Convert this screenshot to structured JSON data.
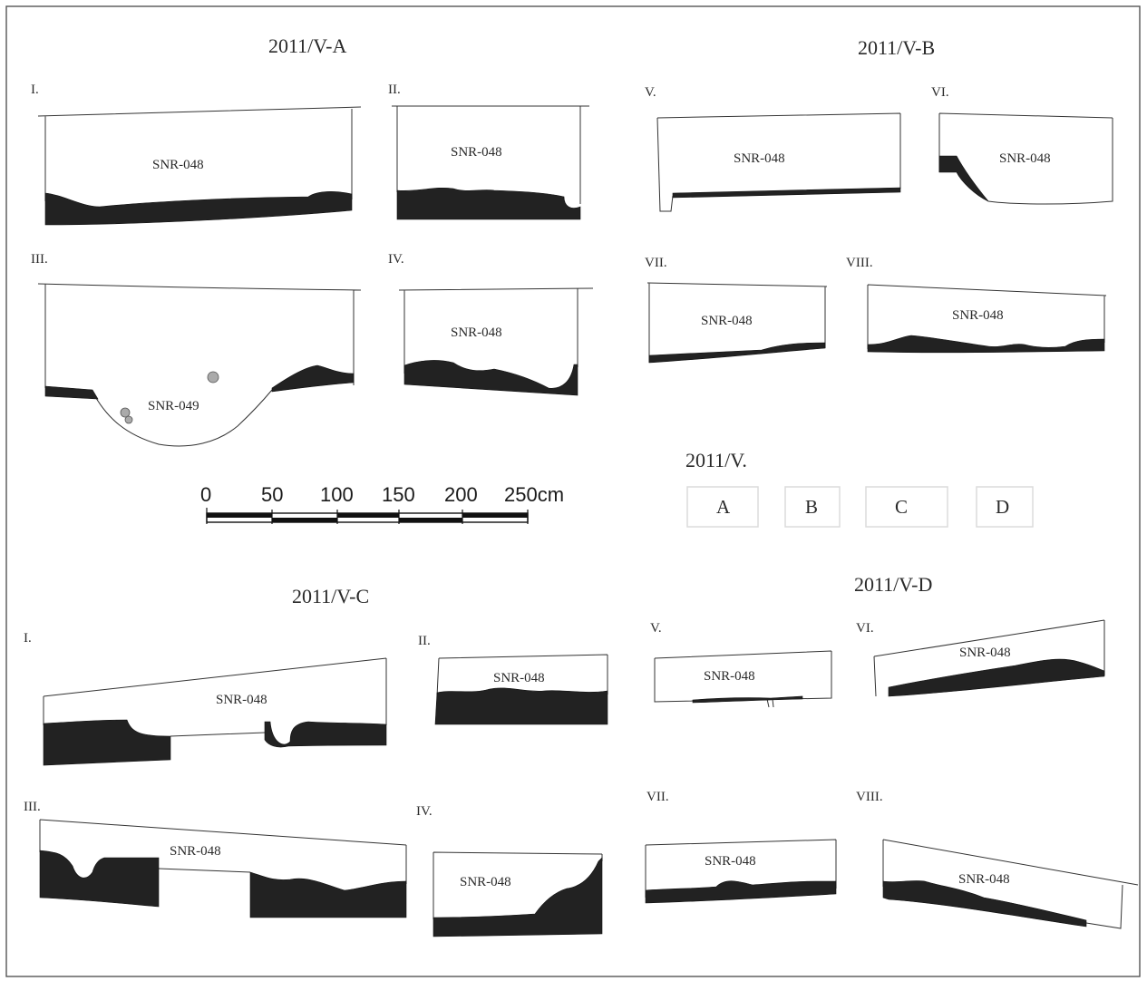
{
  "sections": [
    {
      "title": "2011/V-A",
      "profiles": [
        {
          "label": "I.",
          "unit": "SNR-048"
        },
        {
          "label": "II.",
          "unit": "SNR-048"
        },
        {
          "label": "III.",
          "unit": "SNR-049"
        },
        {
          "label": "IV.",
          "unit": "SNR-048"
        }
      ]
    },
    {
      "title": "2011/V-B",
      "profiles": [
        {
          "label": "V.",
          "unit": "SNR-048"
        },
        {
          "label": "VI.",
          "unit": "SNR-048"
        },
        {
          "label": "VII.",
          "unit": "SNR-048"
        },
        {
          "label": "VIII.",
          "unit": "SNR-048"
        }
      ]
    },
    {
      "title": "2011/V-C",
      "profiles": [
        {
          "label": "I.",
          "unit": "SNR-048"
        },
        {
          "label": "II.",
          "unit": "SNR-048"
        },
        {
          "label": "III.",
          "unit": "SNR-048"
        },
        {
          "label": "IV.",
          "unit": "SNR-048"
        }
      ]
    },
    {
      "title": "2011/V-D",
      "profiles": [
        {
          "label": "V.",
          "unit": "SNR-048"
        },
        {
          "label": "VI.",
          "unit": "SNR-048"
        },
        {
          "label": "VII.",
          "unit": "SNR-048"
        },
        {
          "label": "VIII.",
          "unit": "SNR-048"
        }
      ]
    }
  ],
  "scale_bar": {
    "ticks": [
      "0",
      "50",
      "100",
      "150",
      "200",
      "250cm"
    ]
  },
  "key": {
    "title": "2011/V.",
    "boxes": [
      "A",
      "B",
      "C",
      "D"
    ]
  },
  "colors": {
    "fill": "#222222",
    "line": "#333333",
    "frame": "#555555"
  }
}
